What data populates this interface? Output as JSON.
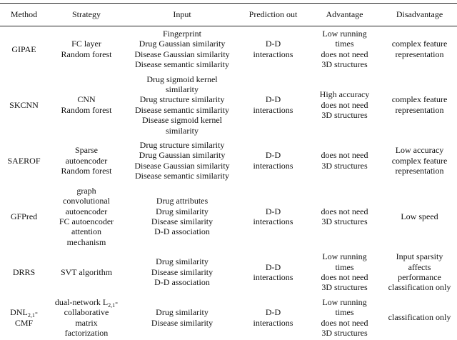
{
  "table": {
    "headers": [
      "Method",
      "Strategy",
      "Input",
      "Prediction out",
      "Advantage",
      "Disadvantage"
    ],
    "rows": [
      [
        [
          "GIPAE"
        ],
        [
          "FC layer",
          "Random forest"
        ],
        [
          "Fingerprint",
          "Drug Gaussian similarity",
          "Disease Gaussian similarity",
          "Disease semantic similarity"
        ],
        [
          "D-D",
          "interactions"
        ],
        [
          "Low running",
          "times",
          "does not need",
          "3D structures"
        ],
        [
          "complex feature",
          "representation"
        ]
      ],
      [
        [
          "SKCNN"
        ],
        [
          "CNN",
          "Random forest"
        ],
        [
          "Drug sigmoid kernel",
          "similarity",
          "Drug structure similarity",
          "Disease semantic similarity",
          "Disease sigmoid kernel",
          "similarity"
        ],
        [
          "D-D",
          "interactions"
        ],
        [
          "High accuracy",
          "does not need",
          "3D structures"
        ],
        [
          "complex feature",
          "representation"
        ]
      ],
      [
        [
          "SAEROF"
        ],
        [
          "Sparse",
          "autoencoder",
          "Random forest"
        ],
        [
          "Drug structure similarity",
          "Drug Gaussian similarity",
          "Disease Gaussian similarity",
          "Disease semantic similarity"
        ],
        [
          "D-D",
          "interactions"
        ],
        [
          "does not need",
          "3D structures"
        ],
        [
          "Low accuracy",
          "complex feature",
          "representation"
        ]
      ],
      [
        [
          "GFPred"
        ],
        [
          "graph",
          "convolutional",
          "autoencoder",
          "FC autoencoder",
          "attention",
          "mechanism"
        ],
        [
          "Drug attributes",
          "Drug similarity",
          "Disease similarity",
          "D-D association"
        ],
        [
          "D-D",
          "interactions"
        ],
        [
          "does not need",
          "3D structures"
        ],
        [
          "Low speed"
        ]
      ],
      [
        [
          "DRRS"
        ],
        [
          "SVT algorithm"
        ],
        [
          "Drug similarity",
          "Disease similarity",
          "D-D association"
        ],
        [
          "D-D",
          "interactions"
        ],
        [
          "Low running",
          "times",
          "does not need",
          "3D structures"
        ],
        [
          "Input sparsity",
          "affects",
          "performance",
          "classification only"
        ]
      ],
      [
        [
          {
            "base": "DNL",
            "sub": "2,1",
            "tail": "-"
          },
          "CMF"
        ],
        [
          {
            "base": "dual-network L",
            "sub": "2,1",
            "tail": "-"
          },
          "collaborative",
          "matrix",
          "factorization"
        ],
        [
          "Drug similarity",
          "Disease similarity"
        ],
        [
          "D-D",
          "interactions"
        ],
        [
          "Low running",
          "times",
          "does not need",
          "3D structures"
        ],
        [
          "classification only"
        ]
      ]
    ]
  }
}
